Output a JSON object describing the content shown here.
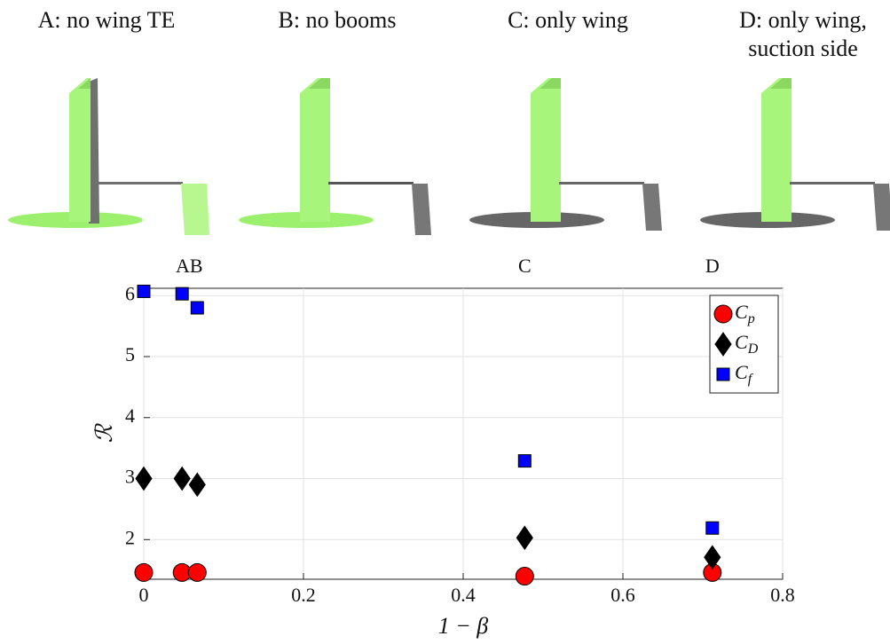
{
  "panels": [
    {
      "title": [
        "A: no wing TE"
      ]
    },
    {
      "title": [
        "B: no booms"
      ]
    },
    {
      "title": [
        "C: only wing"
      ]
    },
    {
      "title": [
        "D: only wing,",
        "suction side"
      ]
    }
  ],
  "chart_data": {
    "type": "scatter",
    "x_label": "1 − β",
    "y_label": "ℛ",
    "x": [
      0,
      0.048,
      0.067,
      0.477,
      0.712
    ],
    "series": [
      {
        "name": "C_p",
        "color": "#ff0000",
        "marker": "circle",
        "values": [
          1.46,
          1.46,
          1.46,
          1.4,
          1.46
        ]
      },
      {
        "name": "C_D",
        "color": "#000000",
        "marker": "diamond",
        "values": [
          3.0,
          3.0,
          2.9,
          2.03,
          1.71
        ]
      },
      {
        "name": "C_f",
        "color": "#0000ff",
        "marker": "square",
        "values": [
          6.07,
          6.03,
          5.8,
          3.29,
          2.19
        ]
      }
    ],
    "annotations": [
      {
        "text": "AB",
        "x": 0.057
      },
      {
        "text": "C",
        "x": 0.477
      },
      {
        "text": "D",
        "x": 0.712
      }
    ],
    "xlim": [
      0,
      0.8
    ],
    "ylim": [
      1.35,
      6.12
    ],
    "xticks": [
      0,
      0.2,
      0.4,
      0.6,
      0.8
    ],
    "yticks": [
      2,
      3,
      4,
      5,
      6
    ],
    "grid": true,
    "legend": "upper right"
  }
}
